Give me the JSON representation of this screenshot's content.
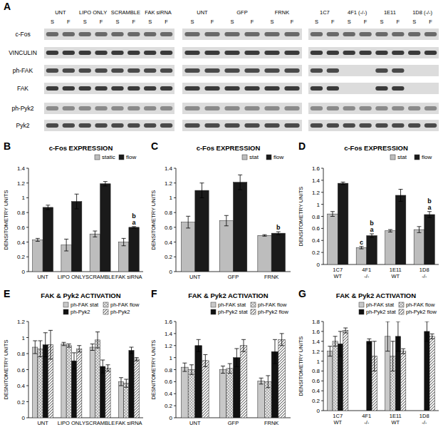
{
  "blots": {
    "label": "A",
    "rows": [
      "c-Fos",
      "VINCULIN",
      "ph-FAK",
      "FAK",
      "ph-Pyk2",
      "Pyk2"
    ],
    "groups": [
      {
        "conditions": [
          "UNT",
          "LIPO ONLY",
          "SCRAMBLE",
          "FAK siRNA"
        ],
        "lanes": [
          "S",
          "F",
          "S",
          "F",
          "S",
          "F",
          "S",
          "F"
        ]
      },
      {
        "conditions": [
          "UNT",
          "GFP",
          "FRNK"
        ],
        "lanes": [
          "S",
          "F",
          "S",
          "F",
          "S",
          "F"
        ]
      },
      {
        "conditions": [
          "1C7",
          "4F1 (-/-)",
          "1E11",
          "1D8 (-/-)"
        ],
        "lanes": [
          "S",
          "F",
          "S",
          "F",
          "S",
          "F",
          "S",
          "F"
        ],
        "empty_bands": [
          {
            "row": "ph-FAK",
            "lanes": [
              2,
              3,
              6,
              7
            ]
          },
          {
            "row": "FAK",
            "lanes": [
              2,
              3,
              6,
              7
            ]
          }
        ]
      }
    ]
  },
  "chart_data": [
    {
      "panel_label": "B",
      "type": "bar",
      "title": "c-Fos EXPRESSION",
      "ylabel": "DENSITOMETRY UNITS",
      "categories": [
        "UNT",
        "LIPO ONLY",
        "SCRAMBLE",
        "FAK siRNA"
      ],
      "series": [
        {
          "name": "static",
          "color": "#bdbdbd",
          "values": [
            0.43,
            0.36,
            0.51,
            0.4
          ],
          "errors": [
            0.02,
            0.08,
            0.04,
            0.05
          ]
        },
        {
          "name": "flow",
          "color": "#1a1a1a",
          "values": [
            0.87,
            0.95,
            1.19,
            0.6
          ],
          "errors": [
            0.03,
            0.1,
            0.03,
            0.01
          ],
          "annotations": [
            null,
            null,
            null,
            [
              "b",
              "a"
            ]
          ]
        }
      ],
      "ylim": [
        0,
        1.4
      ],
      "yticks": [
        0,
        0.2,
        0.4,
        0.6,
        0.8,
        1,
        1.2,
        1.4
      ],
      "grid": false,
      "legend": "top right"
    },
    {
      "panel_label": "C",
      "type": "bar",
      "title": "c-Fos EXPRESSION",
      "ylabel": "DENSITOMETRY UNITS",
      "categories": [
        "UNT",
        "GFP",
        "FRNK"
      ],
      "series": [
        {
          "name": "stat",
          "color": "#bdbdbd",
          "values": [
            0.67,
            0.69,
            0.49
          ],
          "errors": [
            0.08,
            0.07,
            0.01
          ]
        },
        {
          "name": "flow",
          "color": "#1a1a1a",
          "values": [
            1.1,
            1.21,
            0.52
          ],
          "errors": [
            0.1,
            0.1,
            0.02
          ],
          "annotations": [
            null,
            null,
            [
              "b"
            ]
          ]
        }
      ],
      "ylim": [
        0,
        1.4
      ],
      "yticks": [
        0,
        0.2,
        0.4,
        0.6,
        0.8,
        1,
        1.2,
        1.4
      ],
      "grid": false,
      "legend": "top right"
    },
    {
      "panel_label": "D",
      "type": "bar",
      "title": "c-Fos EXPRESSION",
      "ylabel": "DENSITOMETRY UNITS",
      "categories": [
        "1C7\nWT",
        "4F1\n-/-",
        "1E11\nWT",
        "1D8\n-/-"
      ],
      "series": [
        {
          "name": "stat",
          "color": "#bdbdbd",
          "values": [
            0.84,
            0.28,
            0.56,
            0.58
          ],
          "errors": [
            0.04,
            0.02,
            0.02,
            0.05
          ],
          "annotations": [
            null,
            [
              "c"
            ],
            null,
            null
          ]
        },
        {
          "name": "flow",
          "color": "#1a1a1a",
          "values": [
            1.35,
            0.48,
            1.15,
            0.83
          ],
          "errors": [
            0.02,
            0.03,
            0.1,
            0.05
          ],
          "annotations": [
            null,
            [
              "b",
              "a"
            ],
            null,
            [
              "b",
              "a"
            ]
          ]
        }
      ],
      "ylim": [
        0,
        1.6
      ],
      "yticks": [
        0,
        0.2,
        0.4,
        0.6,
        0.8,
        1,
        1.2,
        1.4,
        1.6
      ],
      "grid": false,
      "legend": "top right"
    },
    {
      "panel_label": "E",
      "type": "bar",
      "title": "FAK & Pyk2 ACTIVATION",
      "ylabel": "DESNITOMETRY UNITS",
      "categories": [
        "UNT",
        "LIPO ONLY",
        "SCRAMBLE",
        "FAK siRNA"
      ],
      "series": [
        {
          "name": "ph-FAK stat",
          "color": "#c8c8c8",
          "values": [
            0.88,
            0.92,
            0.88,
            0.45
          ],
          "errors": [
            0.08,
            0.02,
            0.04,
            0.05
          ]
        },
        {
          "name": "ph-FAK flow",
          "color": "#e6e6e6",
          "values": [
            0.86,
            0.9,
            0.97,
            0.43
          ],
          "errors": [
            0.1,
            0.02,
            0.1,
            0.05
          ]
        },
        {
          "name": "ph-Pyk2",
          "color": "#111111",
          "values": [
            0.91,
            0.71,
            0.64,
            0.84
          ],
          "errors": [
            0.15,
            0.1,
            0.08,
            0.04
          ]
        },
        {
          "name": "ph-Pyk2",
          "color": "#f0f0f0",
          "values": [
            0.91,
            0.86,
            0.62,
            0.73
          ],
          "errors": [
            0.18,
            0.04,
            0.04,
            0.02
          ]
        }
      ],
      "ylim": [
        0,
        1.2
      ],
      "yticks": [
        0,
        0.2,
        0.4,
        0.6,
        0.8,
        1,
        1.2
      ],
      "grid": false,
      "legend": "top right"
    },
    {
      "panel_label": "F",
      "type": "bar",
      "title": "FAK & Pyk2 ACTIVATION",
      "ylabel": "DESNITOMETRY UNITS",
      "categories": [
        "UNT",
        "GFP",
        "FRNK"
      ],
      "series": [
        {
          "name": "ph-FAK stat",
          "color": "#c8c8c8",
          "values": [
            0.84,
            0.8,
            0.61
          ],
          "errors": [
            0.07,
            0.06,
            0.05
          ]
        },
        {
          "name": "ph-FAK flow",
          "color": "#e6e6e6",
          "values": [
            0.8,
            0.82,
            0.6
          ],
          "errors": [
            0.08,
            0.08,
            0.1
          ]
        },
        {
          "name": "ph-Pyk2 stat",
          "color": "#111111",
          "values": [
            1.2,
            1.0,
            1.1
          ],
          "errors": [
            0.1,
            0.15,
            0.2
          ]
        },
        {
          "name": "ph-Pyk2 flow",
          "color": "#f0f0f0",
          "values": [
            0.95,
            1.2,
            1.3
          ],
          "errors": [
            0.1,
            0.1,
            0.1
          ]
        }
      ],
      "ylim": [
        0,
        1.6
      ],
      "yticks": [
        0,
        0.2,
        0.4,
        0.6,
        0.8,
        1,
        1.2,
        1.4,
        1.6
      ],
      "grid": false,
      "legend": "top right"
    },
    {
      "panel_label": "G",
      "type": "bar",
      "title": "FAK & Pyk2 ACTIVATION",
      "ylabel": "DENSITOMETRY UNITS",
      "categories": [
        "1C7\nWT",
        "4F1\n-/-",
        "1E11\nWT",
        "1D8\n-/-"
      ],
      "series": [
        {
          "name": "ph-FAK stat",
          "color": "#c8c8c8",
          "values": [
            1.2,
            null,
            1.5,
            null
          ],
          "errors": [
            0.1,
            null,
            0.3,
            null
          ]
        },
        {
          "name": "ph-FAK flow",
          "color": "#e6e6e6",
          "values": [
            1.4,
            null,
            1.1,
            null
          ],
          "errors": [
            0.1,
            null,
            0.3,
            null
          ]
        },
        {
          "name": "ph-Pyk2 stat",
          "color": "#111111",
          "values": [
            1.35,
            1.4,
            1.5,
            1.6
          ],
          "errors": [
            0.25,
            0.05,
            0.3,
            0.2
          ]
        },
        {
          "name": "ph-Pyk2 flow",
          "color": "#f0f0f0",
          "values": [
            1.62,
            1.1,
            1.2,
            1.5
          ],
          "errors": [
            0.05,
            0.3,
            0.05,
            0.05
          ]
        }
      ],
      "ylim": [
        0,
        1.8
      ],
      "yticks": [
        0,
        0.2,
        0.4,
        0.6,
        0.8,
        1,
        1.2,
        1.4,
        1.6,
        1.8
      ],
      "grid": false,
      "legend": "top right"
    }
  ]
}
